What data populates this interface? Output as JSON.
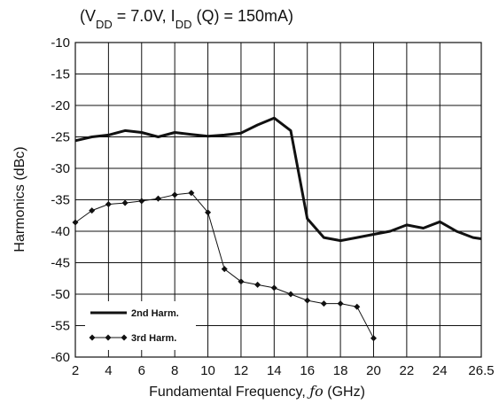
{
  "chart_data": {
    "type": "line",
    "title": {
      "open": "(V",
      "vdd_sub": "DD",
      "vdd_value": " = 7.0V, I",
      "idd_sub": "DD",
      "idd_rest": " (Q) = 150mA)"
    },
    "xlabel": {
      "before": "Fundamental Frequency, ",
      "symbol": "ƒo",
      "after": " (GHz)"
    },
    "ylabel": "Harmonics (dBc)",
    "xlim": [
      2,
      26.5
    ],
    "ylim": [
      -60,
      -10
    ],
    "x_tick_labels": [
      "2",
      "4",
      "6",
      "8",
      "10",
      "12",
      "14",
      "16",
      "18",
      "20",
      "22",
      "24",
      "26.5"
    ],
    "y_tick_labels": [
      "-10",
      "-15",
      "-20",
      "-25",
      "-30",
      "-35",
      "-40",
      "-45",
      "-50",
      "-55",
      "-60"
    ],
    "grid": true,
    "legend_position": "bottom-left",
    "series": [
      {
        "name": "2nd Harm.",
        "style": "thick-line",
        "color": "#111111",
        "points": [
          [
            2,
            -25.6
          ],
          [
            3,
            -25
          ],
          [
            4,
            -24.7
          ],
          [
            5,
            -24
          ],
          [
            6,
            -24.3
          ],
          [
            7,
            -25
          ],
          [
            8,
            -24.3
          ],
          [
            9,
            -24.6
          ],
          [
            10,
            -24.9
          ],
          [
            11,
            -24.7
          ],
          [
            12,
            -24.4
          ],
          [
            13,
            -23.1
          ],
          [
            14,
            -22
          ],
          [
            15,
            -24
          ],
          [
            16,
            -38
          ],
          [
            17,
            -41
          ],
          [
            18,
            -41.5
          ],
          [
            19,
            -41
          ],
          [
            20,
            -40.5
          ],
          [
            21,
            -40
          ],
          [
            22,
            -39
          ],
          [
            23,
            -39.5
          ],
          [
            24,
            -38.5
          ],
          [
            25,
            -40
          ],
          [
            26,
            -41
          ],
          [
            26.5,
            -41.2
          ]
        ]
      },
      {
        "name": "3rd Harm.",
        "style": "line-with-diamonds",
        "color": "#111111",
        "points": [
          [
            2,
            -38.6
          ],
          [
            3,
            -36.7
          ],
          [
            4,
            -35.7
          ],
          [
            5,
            -35.5
          ],
          [
            6,
            -35.2
          ],
          [
            7,
            -34.8
          ],
          [
            8,
            -34.2
          ],
          [
            9,
            -33.9
          ],
          [
            10,
            -37
          ],
          [
            11,
            -46
          ],
          [
            12,
            -48
          ],
          [
            13,
            -48.5
          ],
          [
            14,
            -49
          ],
          [
            15,
            -50
          ],
          [
            16,
            -51
          ],
          [
            17,
            -51.5
          ],
          [
            18,
            -51.5
          ],
          [
            19,
            -52
          ],
          [
            20,
            -57
          ]
        ]
      }
    ]
  }
}
